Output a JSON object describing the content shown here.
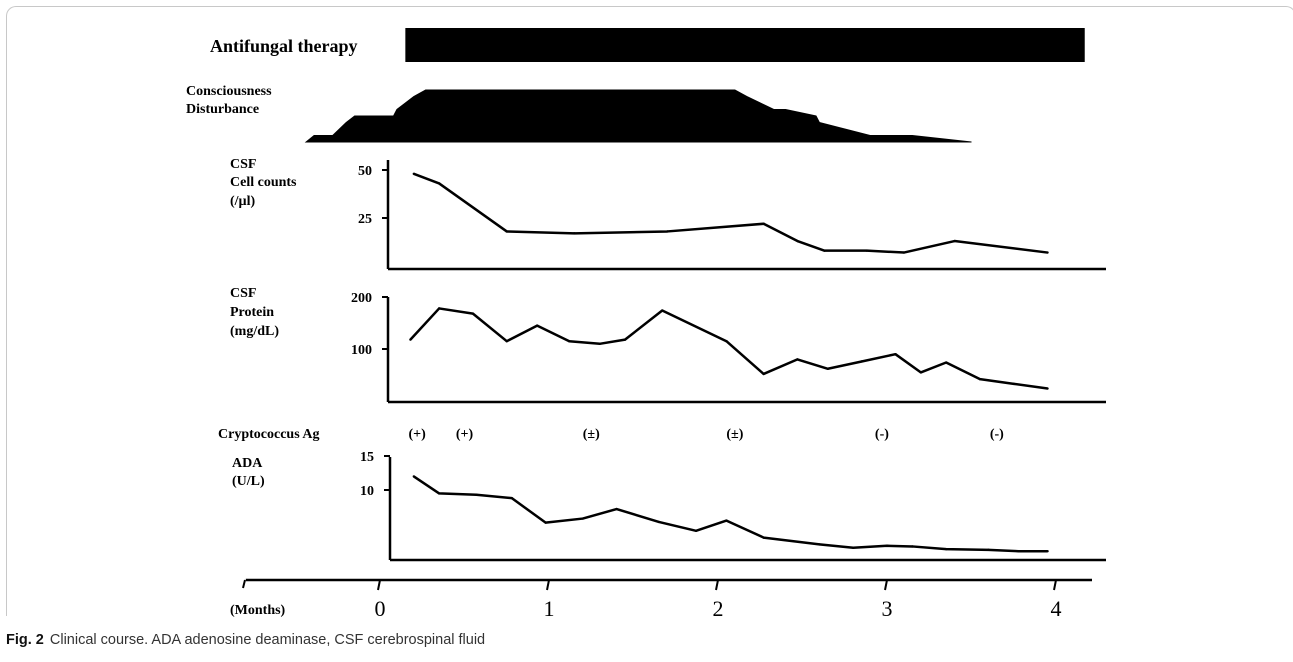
{
  "labels": {
    "antifungal": "Antifungal therapy",
    "consciousness_line1": "Consciousness",
    "consciousness_line2": "Disturbance",
    "csf_cells_line1": "CSF",
    "csf_cells_line2": "Cell counts",
    "csf_cells_line3": "(/µl)",
    "csf_protein_line1": "CSF",
    "csf_protein_line2": "Protein",
    "csf_protein_line3": "(mg/dL)",
    "crypto": "Cryptococcus Ag",
    "ada_line1": "ADA",
    "ada_line2": "(U/L)",
    "months": "(Months)"
  },
  "caption": {
    "fig_label": "Fig. 2",
    "text": "Clinical course. ADA adenosine deaminase, CSF cerebrospinal fluid"
  },
  "chart_data": [
    {
      "type": "bar",
      "name": "Antifungal therapy",
      "x": [
        0.15,
        4.17
      ],
      "xlabel": "(Months)"
    },
    {
      "type": "area",
      "name": "Consciousness Disturbance",
      "x": [
        -0.39,
        -0.28,
        -0.2,
        -0.15,
        -0.05,
        0.08,
        0.1,
        0.15,
        0.2,
        0.27,
        0.3,
        2.1,
        2.17,
        2.25,
        2.33,
        2.4,
        2.58,
        2.6,
        2.75,
        2.9,
        3.05,
        3.15,
        3.5
      ],
      "y": [
        1,
        1,
        3,
        4,
        4,
        4,
        5,
        6,
        7,
        8,
        8,
        8,
        7,
        6,
        5,
        5,
        4,
        3,
        2,
        1,
        1,
        1,
        0
      ]
    },
    {
      "type": "line",
      "name": "CSF Cell counts",
      "ylabel": "(/µl)",
      "ylim": [
        0,
        50
      ],
      "yticks": [
        25,
        50
      ],
      "x": [
        0.2,
        0.35,
        0.75,
        1.15,
        1.7,
        2.27,
        2.47,
        2.63,
        2.88,
        3.1,
        3.4,
        3.95
      ],
      "y": [
        48,
        43,
        18,
        17,
        18,
        22,
        13,
        8,
        8,
        7,
        13,
        7
      ]
    },
    {
      "type": "line",
      "name": "CSF Protein",
      "ylabel": "(mg/dL)",
      "ylim": [
        0,
        200
      ],
      "yticks": [
        100,
        200
      ],
      "x": [
        0.18,
        0.35,
        0.55,
        0.75,
        0.93,
        1.12,
        1.3,
        1.45,
        1.67,
        2.05,
        2.27,
        2.47,
        2.65,
        2.85,
        3.05,
        3.2,
        3.35,
        3.55,
        3.75,
        3.95
      ],
      "y": [
        118,
        178,
        168,
        115,
        145,
        115,
        110,
        118,
        174,
        115,
        52,
        80,
        62,
        76,
        90,
        55,
        74,
        42,
        33,
        24
      ]
    },
    {
      "type": "table",
      "name": "Cryptococcus Ag",
      "x": [
        0.22,
        0.5,
        1.25,
        2.1,
        2.97,
        3.65
      ],
      "values": [
        "(+)",
        "(+)",
        "(±)",
        "(±)",
        "(-)",
        "(-)"
      ]
    },
    {
      "type": "line",
      "name": "ADA",
      "ylabel": "(U/L)",
      "ylim": [
        0,
        15
      ],
      "yticks": [
        10,
        15
      ],
      "x": [
        0.2,
        0.35,
        0.57,
        0.78,
        0.98,
        1.2,
        1.4,
        1.65,
        1.87,
        2.05,
        2.27,
        2.6,
        2.8,
        3.0,
        3.15,
        3.35,
        3.6,
        3.78,
        3.95
      ],
      "y": [
        12,
        9.5,
        9.3,
        8.8,
        5.2,
        5.8,
        7.2,
        5.3,
        4,
        5.5,
        3,
        2,
        1.5,
        1.8,
        1.7,
        1.3,
        1.2,
        1,
        1
      ]
    },
    {
      "type": "line",
      "name": "Time axis",
      "xlabel": "(Months)",
      "xticks": [
        0,
        1,
        2,
        3,
        4
      ],
      "xlim": [
        -0.8,
        4.3
      ]
    }
  ]
}
